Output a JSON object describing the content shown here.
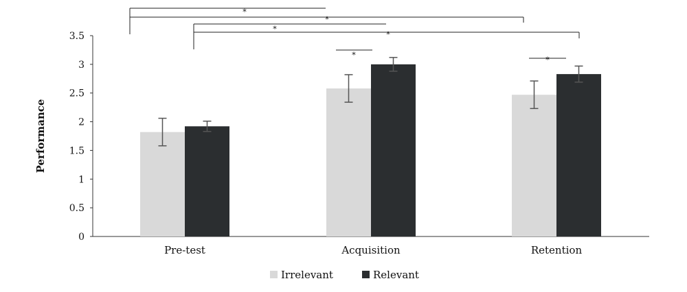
{
  "chart_data": {
    "type": "bar",
    "title": "",
    "xlabel": "",
    "ylabel": "Performance",
    "ylim": [
      0,
      3.5
    ],
    "yticks": [
      "0",
      "0.5",
      "1",
      "1.5",
      "2",
      "2.5",
      "3",
      "3.5"
    ],
    "categories": [
      "Pre-test",
      "Acquisition",
      "Retention"
    ],
    "series": [
      {
        "name": "Irrelevant",
        "color": "#d9d9d9",
        "values": [
          1.82,
          2.58,
          2.47
        ],
        "errors": [
          0.24,
          0.24,
          0.24
        ]
      },
      {
        "name": "Relevant",
        "color": "#2b2e30",
        "values": [
          1.92,
          3.0,
          2.83
        ],
        "errors": [
          0.09,
          0.12,
          0.14
        ]
      }
    ],
    "legend": "bottom-center",
    "grid": false,
    "significance": [
      {
        "from": "Pre-test / Irrelevant",
        "to": "Acquisition / Irrelevant",
        "label": "*"
      },
      {
        "from": "Pre-test / Irrelevant",
        "to": "Retention / Irrelevant",
        "label": "*"
      },
      {
        "from": "Pre-test / Relevant",
        "to": "Acquisition / Relevant",
        "label": "*"
      },
      {
        "from": "Pre-test / Relevant",
        "to": "Retention / Relevant",
        "label": "*"
      },
      {
        "from": "Acquisition / Irrelevant",
        "to": "Acquisition / Relevant",
        "label": "*"
      },
      {
        "from": "Retention / Irrelevant",
        "to": "Retention / Relevant",
        "label": "*"
      }
    ]
  }
}
